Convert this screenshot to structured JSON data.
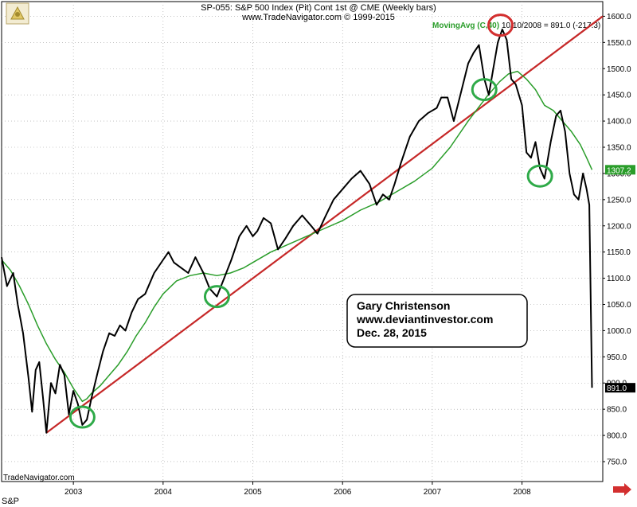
{
  "header": {
    "line1": "SP-055:  S&P 500 Index (Pit) Cont 1st @ CME  (Weekly bars)",
    "line2": "www.TradeNavigator.com © 1999-2015"
  },
  "footer": {
    "left_label": "TradeNavigator.com",
    "symbol": "S&P"
  },
  "annotation": {
    "line1": "Gary Christenson",
    "line2": "www.deviantinvestor.com",
    "line3": "Dec. 28, 2015"
  },
  "colors": {
    "price": "#000000",
    "moving_avg": "#2a9d2a",
    "trendline": "#c62828",
    "green_circle": "#2eaa48",
    "red_circle": "#d32f2f",
    "grid": "#9e9e9e",
    "scroll_arrow": "#d32f2f"
  },
  "chart_data": {
    "type": "line",
    "title": "SP-055:  S&P 500 Index (Pit) Cont 1st @ CME  (Weekly bars)",
    "ylim": [
      712,
      1628
    ],
    "xlim": [
      2002.2,
      2008.9
    ],
    "grid": true,
    "y_ticks": [
      "750.0",
      "800.0",
      "850.0",
      "900.0",
      "950.0",
      "1000.0",
      "1050.0",
      "1100.0",
      "1150.0",
      "1200.0",
      "1250.0",
      "1300.0",
      "1350.0",
      "1400.0",
      "1450.0",
      "1500.0",
      "1550.0",
      "1600.0"
    ],
    "x_ticks": [
      "2003",
      "2004",
      "2005",
      "2006",
      "2007",
      "2008"
    ],
    "moving_avg_label": "MovingAvg (C,40)",
    "info_label": "10/10/2008 = 891.0 (-217.3)",
    "last_price_label": "891.0",
    "last_ma_label": "1307.2",
    "series": [
      {
        "name": "S&P 500",
        "x": [
          2002.2,
          2002.26,
          2002.33,
          2002.38,
          2002.44,
          2002.5,
          2002.54,
          2002.58,
          2002.62,
          2002.66,
          2002.7,
          2002.75,
          2002.8,
          2002.85,
          2002.9,
          2002.95,
          2003.0,
          2003.05,
          2003.1,
          2003.15,
          2003.2,
          2003.27,
          2003.33,
          2003.4,
          2003.46,
          2003.52,
          2003.58,
          2003.65,
          2003.72,
          2003.8,
          2003.9,
          2004.0,
          2004.06,
          2004.12,
          2004.2,
          2004.28,
          2004.36,
          2004.45,
          2004.52,
          2004.6,
          2004.68,
          2004.76,
          2004.85,
          2004.93,
          2005.0,
          2005.05,
          2005.12,
          2005.2,
          2005.28,
          2005.36,
          2005.45,
          2005.55,
          2005.65,
          2005.72,
          2005.8,
          2005.9,
          2006.0,
          2006.1,
          2006.2,
          2006.3,
          2006.38,
          2006.45,
          2006.52,
          2006.58,
          2006.65,
          2006.75,
          2006.85,
          2006.95,
          2007.05,
          2007.1,
          2007.17,
          2007.24,
          2007.32,
          2007.4,
          2007.46,
          2007.52,
          2007.58,
          2007.63,
          2007.68,
          2007.73,
          2007.78,
          2007.83,
          2007.88,
          2007.93,
          2008.0,
          2008.05,
          2008.1,
          2008.15,
          2008.2,
          2008.25,
          2008.32,
          2008.38,
          2008.43,
          2008.48,
          2008.53,
          2008.58,
          2008.63,
          2008.68,
          2008.72,
          2008.75,
          2008.78
        ],
        "values": [
          1140,
          1085,
          1110,
          1050,
          995,
          910,
          845,
          925,
          940,
          875,
          805,
          900,
          880,
          935,
          915,
          840,
          885,
          860,
          820,
          830,
          870,
          920,
          960,
          995,
          990,
          1010,
          1000,
          1035,
          1060,
          1070,
          1110,
          1135,
          1150,
          1130,
          1120,
          1110,
          1140,
          1110,
          1080,
          1065,
          1100,
          1135,
          1180,
          1200,
          1180,
          1190,
          1215,
          1205,
          1155,
          1175,
          1200,
          1220,
          1200,
          1185,
          1215,
          1250,
          1270,
          1290,
          1305,
          1280,
          1240,
          1260,
          1250,
          1280,
          1320,
          1370,
          1400,
          1415,
          1425,
          1445,
          1445,
          1400,
          1455,
          1510,
          1530,
          1545,
          1480,
          1450,
          1500,
          1550,
          1575,
          1555,
          1480,
          1470,
          1430,
          1340,
          1330,
          1360,
          1310,
          1290,
          1360,
          1410,
          1420,
          1380,
          1300,
          1260,
          1250,
          1300,
          1270,
          1240,
          891
        ]
      },
      {
        "name": "MovingAvg (C,40)",
        "x": [
          2002.2,
          2002.3,
          2002.4,
          2002.5,
          2002.6,
          2002.7,
          2002.8,
          2002.9,
          2003.0,
          2003.1,
          2003.15,
          2003.2,
          2003.3,
          2003.4,
          2003.5,
          2003.6,
          2003.7,
          2003.8,
          2003.9,
          2004.0,
          2004.15,
          2004.3,
          2004.45,
          2004.6,
          2004.75,
          2004.9,
          2005.0,
          2005.2,
          2005.4,
          2005.6,
          2005.8,
          2006.0,
          2006.2,
          2006.4,
          2006.6,
          2006.8,
          2007.0,
          2007.2,
          2007.4,
          2007.6,
          2007.75,
          2007.85,
          2007.95,
          2008.05,
          2008.15,
          2008.25,
          2008.35,
          2008.45,
          2008.55,
          2008.65,
          2008.72,
          2008.78
        ],
        "values": [
          1135,
          1115,
          1085,
          1050,
          1010,
          975,
          945,
          920,
          890,
          865,
          870,
          880,
          895,
          915,
          935,
          960,
          990,
          1015,
          1045,
          1070,
          1095,
          1105,
          1110,
          1105,
          1110,
          1120,
          1130,
          1150,
          1165,
          1180,
          1195,
          1210,
          1230,
          1245,
          1265,
          1285,
          1310,
          1350,
          1400,
          1445,
          1475,
          1490,
          1495,
          1480,
          1460,
          1430,
          1420,
          1400,
          1380,
          1355,
          1330,
          1307
        ]
      }
    ]
  }
}
